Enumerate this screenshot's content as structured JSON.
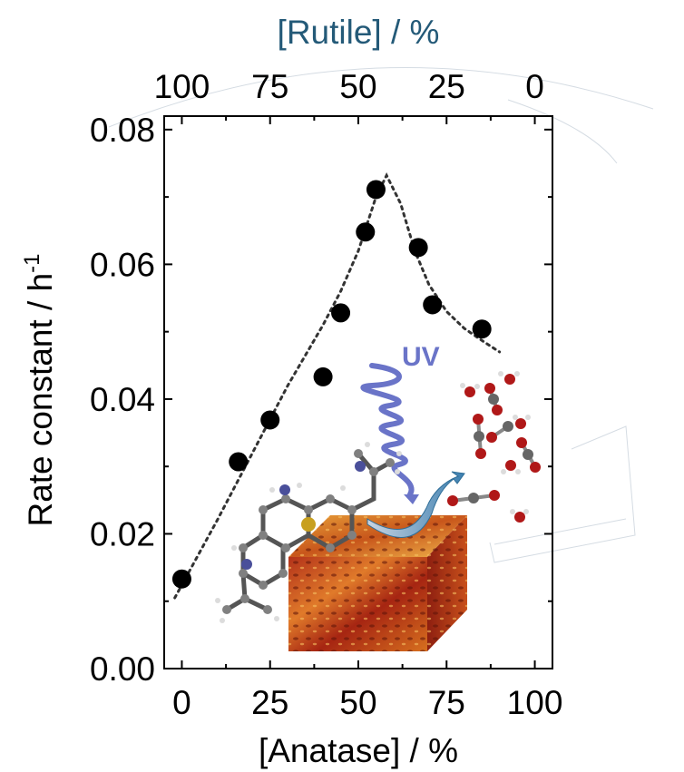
{
  "chart_data": {
    "type": "scatter",
    "x_axis": {
      "label": "[Anatase] / %",
      "ticks": [
        "0",
        "25",
        "50",
        "75",
        "100"
      ],
      "range": [
        -5,
        105
      ]
    },
    "top_axis": {
      "label": "[Rutile] / %",
      "ticks": [
        "100",
        "75",
        "50",
        "25",
        "0"
      ]
    },
    "y_axis": {
      "label": "Rate constant / h",
      "label_superscript": "-1",
      "ticks": [
        "0.00",
        "0.02",
        "0.04",
        "0.06",
        "0.08"
      ],
      "range": [
        0,
        0.082
      ]
    },
    "series": [
      {
        "marker": "filled-circle",
        "color": "#000000",
        "x": [
          0,
          16,
          25,
          40,
          45,
          52,
          55,
          67,
          71,
          85
        ],
        "y": [
          0.0133,
          0.0307,
          0.0369,
          0.0433,
          0.0528,
          0.0648,
          0.0711,
          0.0625,
          0.054,
          0.0504
        ]
      }
    ],
    "fit_curve": {
      "style": "dotted",
      "x": [
        -2,
        10,
        20,
        30,
        40,
        45,
        50,
        55,
        58,
        62,
        66,
        70,
        75,
        80,
        85,
        90
      ],
      "y": [
        0.0105,
        0.022,
        0.032,
        0.042,
        0.051,
        0.056,
        0.062,
        0.07,
        0.0732,
        0.069,
        0.062,
        0.057,
        0.053,
        0.0505,
        0.0487,
        0.047
      ]
    },
    "grid": false,
    "inset_label": "UV"
  }
}
